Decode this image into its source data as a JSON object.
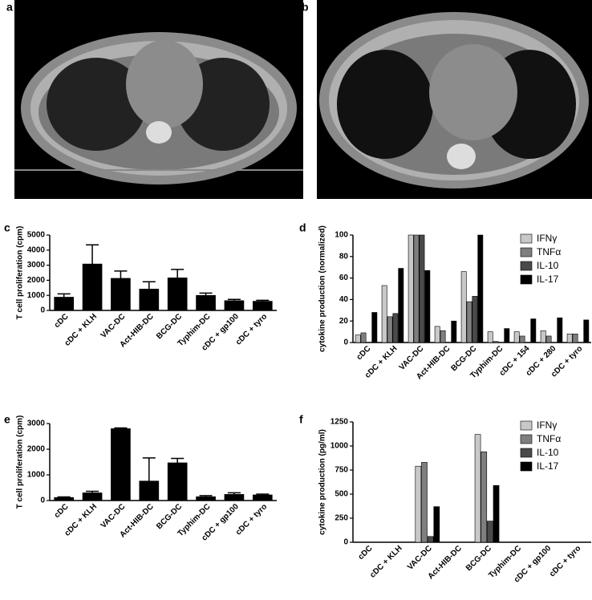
{
  "panel_labels": [
    "a",
    "b",
    "c",
    "d",
    "e",
    "f"
  ],
  "chart_data": [
    {
      "type": "bar",
      "ylabel": "T cell proliferation (cpm)",
      "categories": [
        "cDC",
        "cDC + KLH",
        "VAC-DC",
        "Act-HIB-DC",
        "BCG-DC",
        "Typhim-DC",
        "cDC + gp100",
        "cDC + tyro"
      ],
      "series": [
        {
          "color": "#000000",
          "values": [
            880,
            3080,
            2130,
            1420,
            2160,
            1000,
            650,
            610
          ],
          "errors": [
            220,
            1270,
            480,
            480,
            560,
            150,
            80,
            60
          ]
        }
      ],
      "ylim": [
        0,
        5000
      ],
      "yticks": [
        0,
        1000,
        2000,
        3000,
        4000,
        5000
      ]
    },
    {
      "type": "bar",
      "ylabel": "cytokine production (normalized)",
      "categories": [
        "cDC",
        "cDC + KLH",
        "VAC-DC",
        "Act-HIB-DC",
        "BCG-DC",
        "Typhim-DC",
        "cDC + 154",
        "cDC + 280",
        "cDC + tyro"
      ],
      "series": [
        {
          "name": "IFNγ",
          "color": "#c8c8c8",
          "values": [
            7,
            53,
            100,
            15,
            66,
            10,
            10,
            11,
            8
          ]
        },
        {
          "name": "TNFα",
          "color": "#7f7f7f",
          "values": [
            9,
            24,
            100,
            11,
            38,
            1,
            6,
            6,
            8
          ]
        },
        {
          "name": "IL-10",
          "color": "#4a4a4a",
          "values": [
            0,
            27,
            100,
            0,
            43,
            0,
            0,
            0,
            0
          ]
        },
        {
          "name": "IL-17",
          "color": "#000000",
          "values": [
            28,
            69,
            67,
            20,
            100,
            13,
            22,
            23,
            21
          ]
        }
      ],
      "ylim": [
        0,
        100
      ],
      "yticks": [
        0,
        20,
        40,
        60,
        80,
        100
      ],
      "legend": "top-right"
    },
    {
      "type": "bar",
      "ylabel": "T cell proliferation (cpm)",
      "categories": [
        "cDC",
        "cDC + KLH",
        "VAC-DC",
        "Act-HIB-DC",
        "BCG-DC",
        "Typhim-DC",
        "cDC + gp100",
        "cDC + tyro"
      ],
      "series": [
        {
          "color": "#000000",
          "values": [
            120,
            300,
            2800,
            760,
            1470,
            150,
            240,
            220
          ],
          "errors": [
            20,
            60,
            30,
            900,
            170,
            40,
            60,
            30
          ]
        }
      ],
      "ylim": [
        0,
        3000
      ],
      "yticks": [
        0,
        1000,
        2000,
        3000
      ]
    },
    {
      "type": "bar",
      "ylabel": "cytokine production (pg/ml)",
      "categories": [
        "cDC",
        "cDC + KLH",
        "VAC-DC",
        "Act-HIB-DC",
        "BCG-DC",
        "Typhim-DC",
        "cDC + gp100",
        "cDC + tyro"
      ],
      "series": [
        {
          "name": "IFNγ",
          "color": "#c8c8c8",
          "values": [
            0,
            0,
            790,
            0,
            1120,
            0,
            0,
            0
          ]
        },
        {
          "name": "TNFα",
          "color": "#7f7f7f",
          "values": [
            0,
            0,
            830,
            0,
            940,
            0,
            0,
            0
          ]
        },
        {
          "name": "IL-10",
          "color": "#4a4a4a",
          "values": [
            0,
            0,
            60,
            0,
            220,
            0,
            0,
            0
          ]
        },
        {
          "name": "IL-17",
          "color": "#000000",
          "values": [
            0,
            0,
            370,
            0,
            590,
            0,
            0,
            0
          ]
        }
      ],
      "ylim": [
        0,
        1250
      ],
      "yticks": [
        0,
        250,
        500,
        750,
        1000,
        1250
      ],
      "legend": "top-right"
    }
  ]
}
